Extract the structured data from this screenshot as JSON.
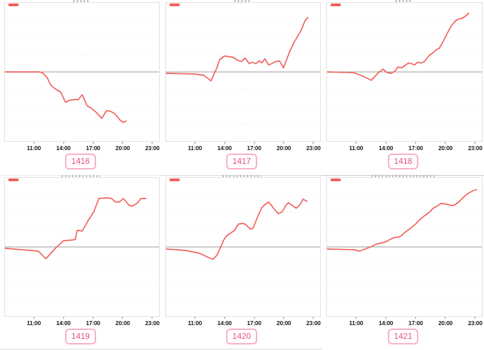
{
  "colors": {
    "line": "#f0615c",
    "zero_line": "#9b9b9b",
    "grid": "#ededed",
    "panel_border": "#e2e2e2",
    "badge_border": "#f6b2c3",
    "badge_text": "#e4567e",
    "tick_text": "#1a1a1a",
    "separator": "#d9d9d9"
  },
  "axis": {
    "x_ticks": [
      "11:00",
      "14:00",
      "17:00",
      "20:00",
      "23:00"
    ],
    "x_tick_hours": [
      11,
      14,
      17,
      20,
      23
    ],
    "x_range_hours": [
      8,
      23.75
    ],
    "y_range": [
      -10,
      10
    ],
    "grid": "horizontal-dotted",
    "zero_line_value": 0
  },
  "chart_data": [
    {
      "type": "line",
      "label": "1416",
      "title": "",
      "x_range_hours": [
        8,
        23.75
      ],
      "y_range": [
        -10,
        10
      ],
      "points": [
        [
          8,
          0
        ],
        [
          11.6,
          0
        ],
        [
          11.9,
          -0.2
        ],
        [
          12.3,
          -0.8
        ],
        [
          12.7,
          -1.9
        ],
        [
          13.2,
          -2.5
        ],
        [
          13.7,
          -2.9
        ],
        [
          14.2,
          -4.4
        ],
        [
          14.6,
          -4.1
        ],
        [
          15.1,
          -4.0
        ],
        [
          15.5,
          -4.0
        ],
        [
          15.9,
          -3.3
        ],
        [
          16.4,
          -4.9
        ],
        [
          16.8,
          -5.2
        ],
        [
          17.3,
          -5.8
        ],
        [
          17.9,
          -6.7
        ],
        [
          18.4,
          -5.6
        ],
        [
          18.8,
          -5.7
        ],
        [
          19.2,
          -6.0
        ],
        [
          19.8,
          -7.0
        ],
        [
          20.1,
          -7.3
        ],
        [
          20.4,
          -7.1
        ]
      ]
    },
    {
      "type": "line",
      "label": "1417",
      "title": "",
      "x_range_hours": [
        8,
        23.75
      ],
      "y_range": [
        -10,
        10
      ],
      "points": [
        [
          8,
          -0.2
        ],
        [
          11.0,
          -0.3
        ],
        [
          11.9,
          -0.5
        ],
        [
          12.6,
          -1.3
        ],
        [
          13.2,
          0.6
        ],
        [
          13.5,
          1.8
        ],
        [
          14.0,
          2.3
        ],
        [
          14.5,
          2.2
        ],
        [
          14.9,
          2.1
        ],
        [
          15.3,
          1.7
        ],
        [
          15.7,
          1.5
        ],
        [
          16.1,
          2.0
        ],
        [
          16.5,
          1.2
        ],
        [
          16.8,
          1.4
        ],
        [
          17.2,
          1.2
        ],
        [
          17.5,
          1.6
        ],
        [
          17.8,
          1.3
        ],
        [
          18.1,
          1.9
        ],
        [
          18.5,
          1.0
        ],
        [
          18.8,
          1.2
        ],
        [
          19.2,
          1.5
        ],
        [
          19.6,
          1.6
        ],
        [
          20.0,
          0.6
        ],
        [
          20.6,
          2.8
        ],
        [
          21.1,
          4.3
        ],
        [
          21.8,
          6.0
        ],
        [
          22.2,
          7.4
        ],
        [
          22.5,
          7.9
        ]
      ]
    },
    {
      "type": "line",
      "label": "1418",
      "title": "",
      "x_range_hours": [
        8,
        23.75
      ],
      "y_range": [
        -10,
        10
      ],
      "points": [
        [
          8,
          0
        ],
        [
          10.7,
          -0.1
        ],
        [
          11.6,
          -0.6
        ],
        [
          12.5,
          -1.2
        ],
        [
          13.3,
          0.0
        ],
        [
          13.7,
          0.4
        ],
        [
          14.1,
          -0.1
        ],
        [
          14.5,
          -0.2
        ],
        [
          14.9,
          0.1
        ],
        [
          15.2,
          0.7
        ],
        [
          15.6,
          0.6
        ],
        [
          15.9,
          0.9
        ],
        [
          16.3,
          1.3
        ],
        [
          16.6,
          1.2
        ],
        [
          16.9,
          1.0
        ],
        [
          17.2,
          1.4
        ],
        [
          17.6,
          1.3
        ],
        [
          17.9,
          1.5
        ],
        [
          18.4,
          2.4
        ],
        [
          18.8,
          2.8
        ],
        [
          19.1,
          3.2
        ],
        [
          19.4,
          3.4
        ],
        [
          19.7,
          4.1
        ],
        [
          20.2,
          5.5
        ],
        [
          20.6,
          6.6
        ],
        [
          21.0,
          7.3
        ],
        [
          21.3,
          7.6
        ],
        [
          21.8,
          7.8
        ],
        [
          22.2,
          8.2
        ],
        [
          22.4,
          8.5
        ]
      ]
    },
    {
      "type": "line",
      "label": "1419",
      "title": "",
      "x_range_hours": [
        8,
        23.75
      ],
      "y_range": [
        -10,
        10
      ],
      "points": [
        [
          8,
          -0.2
        ],
        [
          11.4,
          -0.6
        ],
        [
          12.2,
          -1.7
        ],
        [
          13.3,
          0.0
        ],
        [
          13.7,
          0.5
        ],
        [
          14.0,
          0.9
        ],
        [
          14.9,
          1.0
        ],
        [
          15.2,
          1.1
        ],
        [
          15.4,
          2.4
        ],
        [
          15.9,
          2.3
        ],
        [
          16.5,
          3.8
        ],
        [
          17.1,
          5.1
        ],
        [
          17.6,
          7.0
        ],
        [
          18.5,
          7.1
        ],
        [
          18.9,
          7.0
        ],
        [
          19.3,
          6.5
        ],
        [
          19.7,
          6.5
        ],
        [
          20.1,
          7.0
        ],
        [
          20.7,
          6.0
        ],
        [
          21.0,
          5.9
        ],
        [
          21.5,
          6.3
        ],
        [
          21.9,
          7.0
        ],
        [
          22.4,
          7.0
        ]
      ]
    },
    {
      "type": "line",
      "label": "1420",
      "title": "",
      "x_range_hours": [
        8,
        23.75
      ],
      "y_range": [
        -10,
        10
      ],
      "points": [
        [
          8,
          -0.3
        ],
        [
          10.0,
          -0.5
        ],
        [
          11.4,
          -0.9
        ],
        [
          12.3,
          -1.5
        ],
        [
          12.8,
          -1.8
        ],
        [
          13.2,
          -1.2
        ],
        [
          13.6,
          0.0
        ],
        [
          13.9,
          1.0
        ],
        [
          14.2,
          1.6
        ],
        [
          14.6,
          2.0
        ],
        [
          15.0,
          2.4
        ],
        [
          15.4,
          3.3
        ],
        [
          15.8,
          3.4
        ],
        [
          16.1,
          3.3
        ],
        [
          16.6,
          2.6
        ],
        [
          16.9,
          2.7
        ],
        [
          17.4,
          4.5
        ],
        [
          17.8,
          5.7
        ],
        [
          18.1,
          6.1
        ],
        [
          18.5,
          6.5
        ],
        [
          19.1,
          5.4
        ],
        [
          19.5,
          4.8
        ],
        [
          19.9,
          5.1
        ],
        [
          20.2,
          5.9
        ],
        [
          20.5,
          6.4
        ],
        [
          20.9,
          6.0
        ],
        [
          21.3,
          5.6
        ],
        [
          21.7,
          6.1
        ],
        [
          22.0,
          6.9
        ],
        [
          22.4,
          6.6
        ]
      ]
    },
    {
      "type": "line",
      "label": "1421",
      "title": "",
      "x_range_hours": [
        8,
        23.75
      ],
      "y_range": [
        -10,
        10
      ],
      "points": [
        [
          8,
          -0.3
        ],
        [
          10.7,
          -0.4
        ],
        [
          11.3,
          -0.6
        ],
        [
          11.7,
          -0.4
        ],
        [
          12.6,
          0.1
        ],
        [
          13.0,
          0.4
        ],
        [
          13.6,
          0.6
        ],
        [
          13.9,
          0.7
        ],
        [
          14.3,
          1.0
        ],
        [
          14.7,
          1.3
        ],
        [
          15.0,
          1.4
        ],
        [
          15.3,
          1.4
        ],
        [
          15.7,
          1.8
        ],
        [
          16.0,
          2.2
        ],
        [
          16.5,
          2.7
        ],
        [
          17.0,
          3.3
        ],
        [
          17.4,
          3.9
        ],
        [
          17.9,
          4.5
        ],
        [
          18.4,
          5.0
        ],
        [
          18.8,
          5.6
        ],
        [
          19.3,
          6.0
        ],
        [
          19.6,
          6.3
        ],
        [
          20.1,
          6.2
        ],
        [
          20.6,
          6.0
        ],
        [
          20.9,
          6.0
        ],
        [
          21.4,
          6.5
        ],
        [
          21.8,
          7.1
        ],
        [
          22.3,
          7.7
        ],
        [
          22.8,
          8.1
        ],
        [
          23.2,
          8.3
        ]
      ]
    }
  ]
}
